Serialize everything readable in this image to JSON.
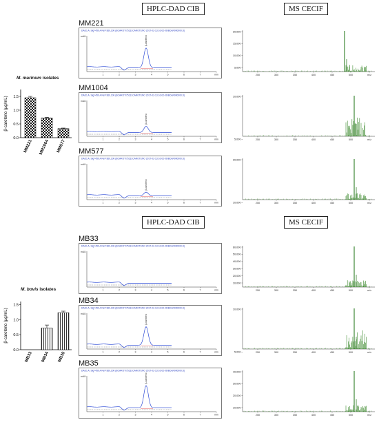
{
  "headers": {
    "hplc": "HPLC-DAD CIB",
    "ms": "MS CECIF"
  },
  "group1": {
    "samples": [
      "MM221",
      "MM1004",
      "MM577"
    ],
    "title_italic": "M. marinum",
    "title_rest": " isolates"
  },
  "group2": {
    "samples": [
      "MB33",
      "MB34",
      "MB35"
    ],
    "title_italic": "M. bovis",
    "title_rest": " isolates"
  },
  "chart_data": [
    {
      "type": "bar",
      "title": "M. marinum isolates",
      "ylabel": "β-caroteno (µg/mL)",
      "categories": [
        "MM221",
        "MM1004",
        "MM577"
      ],
      "values": [
        1.45,
        0.72,
        0.33
      ],
      "errors": [
        0.05,
        0.02,
        0.02
      ],
      "yticks": [
        "0.0",
        "0.5",
        "1.0",
        "1.5"
      ],
      "ylim": [
        0,
        1.75
      ],
      "pattern": "checkered"
    },
    {
      "type": "bar",
      "title": "M. bovis isolates",
      "ylabel": "β-caroteno (µg/mL)",
      "categories": [
        "MB33",
        "MB34",
        "MB35"
      ],
      "values": [
        0.0,
        0.72,
        1.23
      ],
      "errors": [
        0.0,
        0.1,
        0.05
      ],
      "yticks": [
        "0.0",
        "0.5",
        "1.0",
        "1.5"
      ],
      "ylim": [
        0,
        1.6
      ],
      "pattern": "vertical-lines"
    }
  ],
  "hplc_header_text": "DAD1 A, Sig=450,4 Ref=360,100 (BCAROT/75131CAROTENO 2017-02-13 16-02-06/BCAR000000.D)",
  "hplc_peak_label": "β-caroteno",
  "hplc_xticks": [
    "1",
    "2",
    "3",
    "4",
    "5",
    "6",
    "7",
    "min"
  ],
  "hplc_yunit": "mAU",
  "ms_xticks": [
    "250",
    "300",
    "350",
    "400",
    "450",
    "500",
    "m/z"
  ],
  "ms_yticks": {
    "MM221": [
      "20,000",
      "15,000",
      "10,000",
      "5,000"
    ],
    "MM1004": [
      "10,000",
      "5,000"
    ],
    "MM577": [
      "20,000",
      "10,000"
    ],
    "MB33": [
      "60,000",
      "50,000",
      "40,000",
      "30,000",
      "20,000",
      "10,000"
    ],
    "MB34": [
      "10,000",
      "5,000"
    ],
    "MB35": [
      "40,000",
      "30,000",
      "20,000",
      "10,000"
    ]
  }
}
